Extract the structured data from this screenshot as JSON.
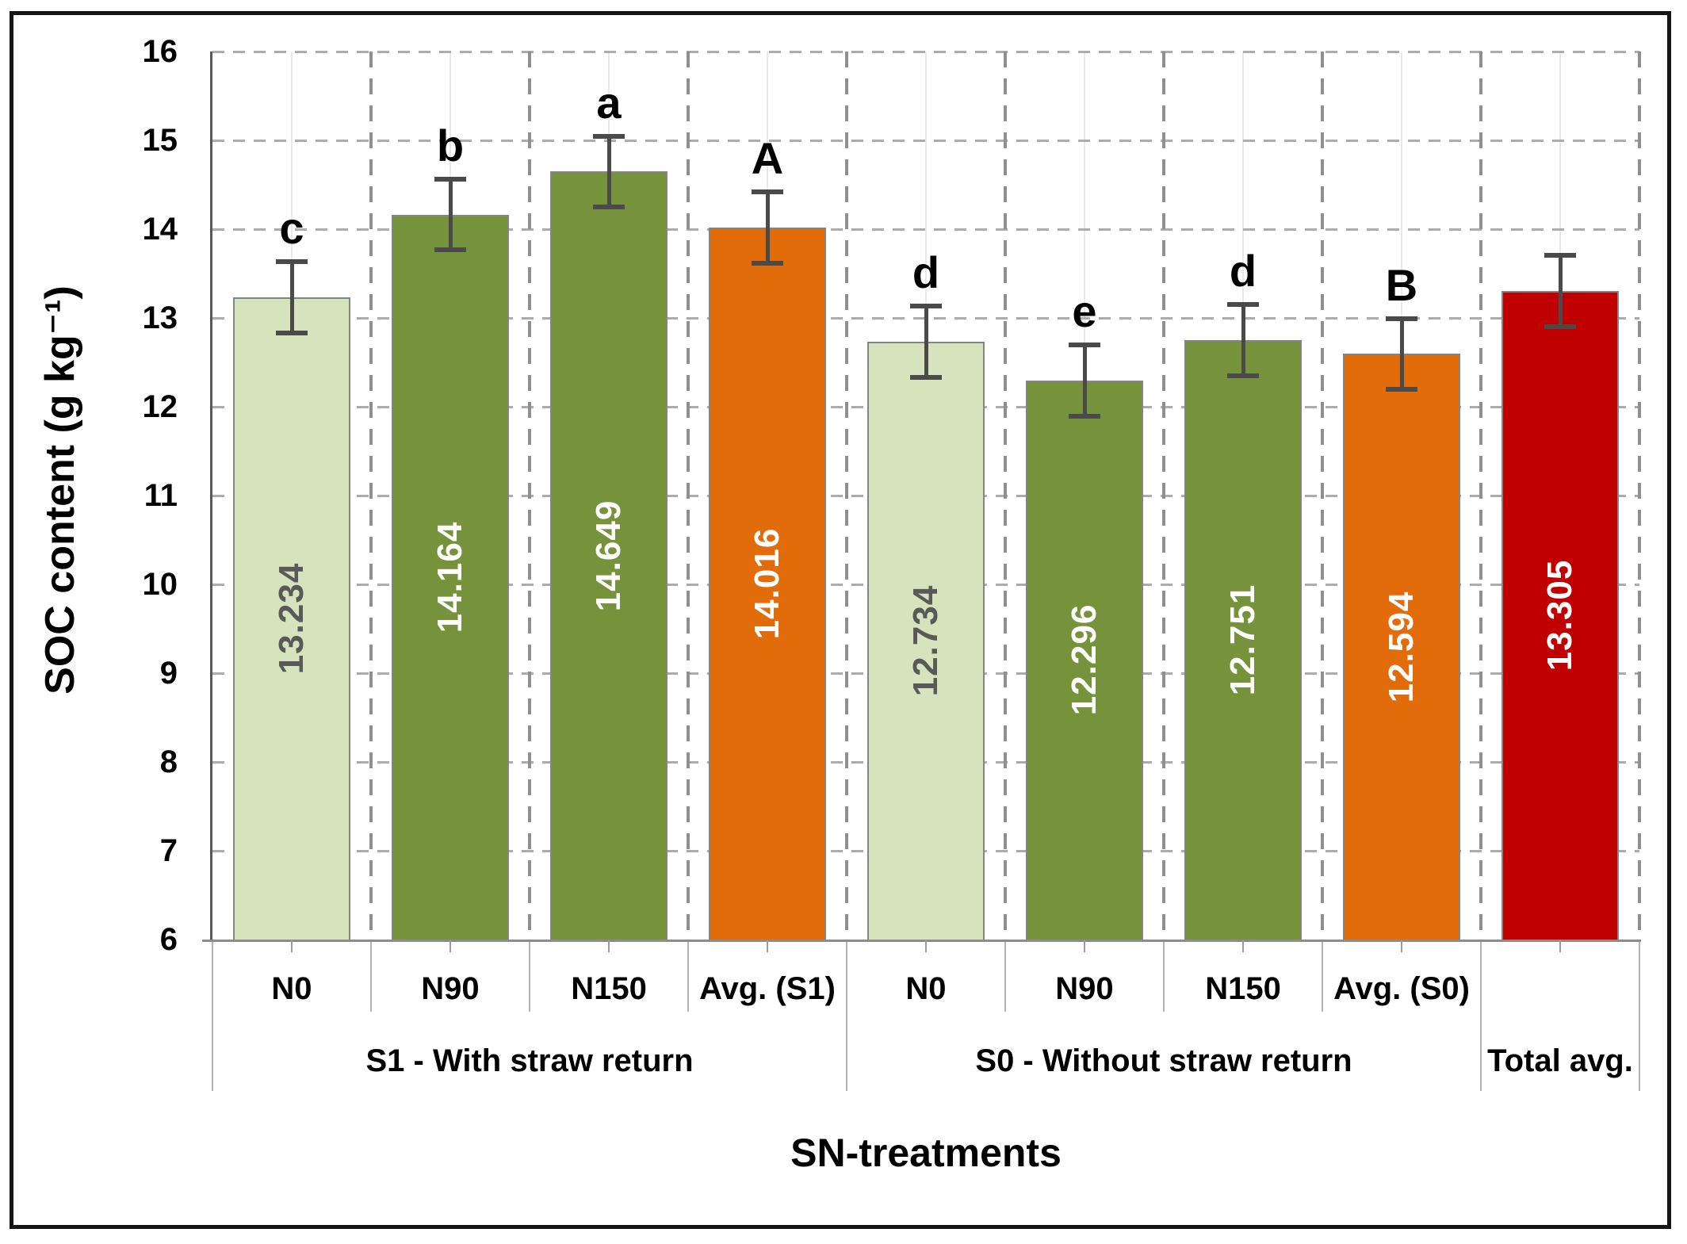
{
  "chart_data": {
    "type": "bar",
    "title": "",
    "xlabel": "SN-treatments",
    "ylabel": "SOC content (g kg⁻¹)",
    "ylim": [
      6,
      16
    ],
    "yticks": [
      16,
      15,
      14,
      13,
      12,
      11,
      10,
      9,
      8,
      7,
      6
    ],
    "grid": {
      "horizontal": "dashed at each integer tick",
      "vertical": "dashed at category boundaries",
      "minor_vertical": "faint solid line at each category center"
    },
    "legend": null,
    "groups": [
      {
        "label": "S1 - With straw return",
        "span": 4
      },
      {
        "label": "S0 - Without straw return",
        "span": 4
      },
      {
        "label": "Total avg.",
        "span": 1
      }
    ],
    "bars": [
      {
        "category": "N0",
        "value": 13.234,
        "value_label": "13.234",
        "error": 0.4,
        "letter": "c",
        "fill": "#d6e3bc",
        "value_text_color": "#595959"
      },
      {
        "category": "N90",
        "value": 14.164,
        "value_label": "14.164",
        "error": 0.4,
        "letter": "b",
        "fill": "#76933c",
        "value_text_color": "#ffffff"
      },
      {
        "category": "N150",
        "value": 14.649,
        "value_label": "14.649",
        "error": 0.4,
        "letter": "a",
        "fill": "#76933c",
        "value_text_color": "#ffffff"
      },
      {
        "category": "Avg. (S1)",
        "value": 14.016,
        "value_label": "14.016",
        "error": 0.4,
        "letter": "A",
        "fill": "#e26b0a",
        "value_text_color": "#ffffff"
      },
      {
        "category": "N0",
        "value": 12.734,
        "value_label": "12.734",
        "error": 0.4,
        "letter": "d",
        "fill": "#d6e3bc",
        "value_text_color": "#595959"
      },
      {
        "category": "N90",
        "value": 12.296,
        "value_label": "12.296",
        "error": 0.4,
        "letter": "e",
        "fill": "#76933c",
        "value_text_color": "#ffffff"
      },
      {
        "category": "N150",
        "value": 12.751,
        "value_label": "12.751",
        "error": 0.4,
        "letter": "d",
        "fill": "#76933c",
        "value_text_color": "#ffffff"
      },
      {
        "category": "Avg. (S0)",
        "value": 12.594,
        "value_label": "12.594",
        "error": 0.4,
        "letter": "B",
        "fill": "#e26b0a",
        "value_text_color": "#ffffff"
      },
      {
        "category": "",
        "value": 13.305,
        "value_label": "13.305",
        "error": 0.4,
        "letter": "",
        "fill": "#c00000",
        "value_text_color": "#ffffff"
      }
    ],
    "colors": {
      "error_bar": "#4a4a4a",
      "bar_border": "#848484",
      "h_gridline": "#acacac",
      "v_gridline": "#8f8f8f",
      "minor_center_line": "#e9e9e9",
      "y_axis_line": "#595959",
      "baseline": "#8c8c8c",
      "separator": "#b3b3b3",
      "letter_text": "#000000",
      "tick_text": "#000000"
    }
  }
}
